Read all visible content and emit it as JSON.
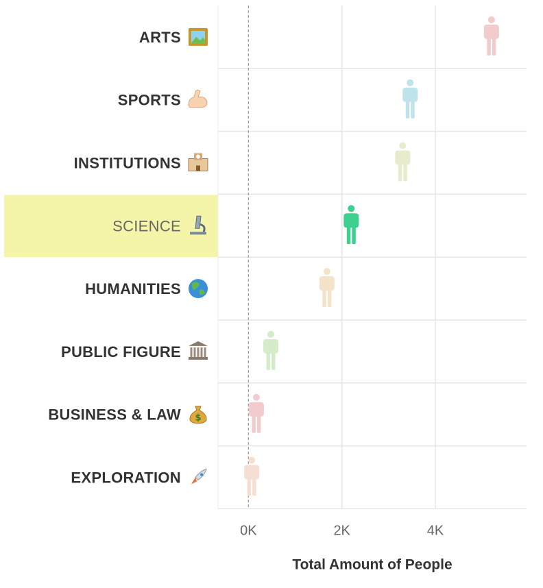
{
  "chart_data": {
    "type": "scatter",
    "title": "",
    "xlabel": "Total Amount of People",
    "ylabel": "",
    "xlim": [
      -650,
      5950
    ],
    "x_ticks": [
      {
        "value": 0,
        "label": "0K"
      },
      {
        "value": 2000,
        "label": "2K"
      },
      {
        "value": 4000,
        "label": "4K"
      }
    ],
    "categories": [
      {
        "name": "ARTS",
        "emoji_icon": "framed-picture-icon",
        "value": 5200,
        "color": "#f2cccc",
        "selected": false
      },
      {
        "name": "SPORTS",
        "emoji_icon": "flexed-biceps-icon",
        "value": 3460,
        "color": "#bfe3ea",
        "selected": false
      },
      {
        "name": "INSTITUTIONS",
        "emoji_icon": "school-icon",
        "value": 3300,
        "color": "#e8ebcd",
        "selected": false
      },
      {
        "name": "SCIENCE",
        "emoji_icon": "microscope-icon",
        "value": 2200,
        "color": "#3dd08f",
        "selected": true
      },
      {
        "name": "HUMANITIES",
        "emoji_icon": "globe-icon",
        "value": 1680,
        "color": "#f3e3c8",
        "selected": false
      },
      {
        "name": "PUBLIC FIGURE",
        "emoji_icon": "classical-building-icon",
        "value": 480,
        "color": "#d4ecc9",
        "selected": false
      },
      {
        "name": "BUSINESS & LAW",
        "emoji_icon": "money-bag-icon",
        "value": 170,
        "color": "#f2cccc",
        "selected": false
      },
      {
        "name": "EXPLORATION",
        "emoji_icon": "rocket-icon",
        "value": 70,
        "color": "#f5dfd3",
        "selected": false
      }
    ],
    "grid": true,
    "reference_line": {
      "value": 0,
      "style": "dashed"
    },
    "highlight_color": "#f5f5aa",
    "marker": "person-icon"
  }
}
